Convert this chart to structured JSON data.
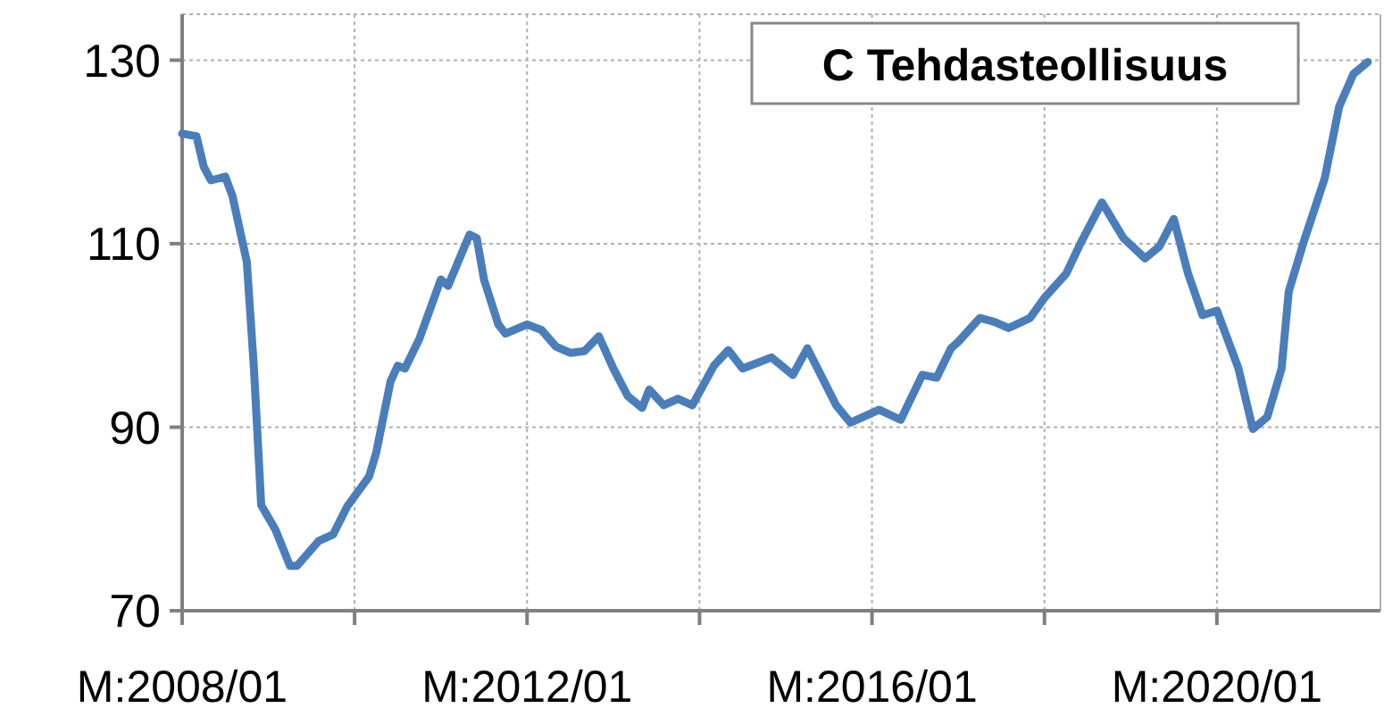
{
  "chart_data": {
    "type": "line",
    "title": "C Tehdasteollisuus",
    "x": [
      "2008-01",
      "2008-03",
      "2008-04",
      "2008-05",
      "2008-07",
      "2008-08",
      "2008-10",
      "2008-11",
      "2008-12",
      "2009-02",
      "2009-04",
      "2009-05",
      "2009-08",
      "2009-10",
      "2009-12",
      "2010-03",
      "2010-04",
      "2010-06",
      "2010-07",
      "2010-08",
      "2010-10",
      "2011-01",
      "2011-02",
      "2011-05",
      "2011-06",
      "2011-07",
      "2011-09",
      "2011-10",
      "2012-01",
      "2012-03",
      "2012-05",
      "2012-07",
      "2012-09",
      "2012-11",
      "2013-01",
      "2013-03",
      "2013-05",
      "2013-06",
      "2013-08",
      "2013-10",
      "2013-12",
      "2014-03",
      "2014-05",
      "2014-07",
      "2014-11",
      "2015-02",
      "2015-04",
      "2015-08",
      "2015-10",
      "2016-02",
      "2016-05",
      "2016-08",
      "2016-10",
      "2016-12",
      "2017-01",
      "2017-04",
      "2017-06",
      "2017-08",
      "2017-11",
      "2018-01",
      "2018-04",
      "2018-06",
      "2018-09",
      "2018-12",
      "2019-03",
      "2019-05",
      "2019-07",
      "2019-09",
      "2019-11",
      "2020-01",
      "2020-04",
      "2020-06",
      "2020-08",
      "2020-10",
      "2020-11",
      "2021-01",
      "2021-04",
      "2021-06",
      "2021-08",
      "2021-10"
    ],
    "series": [
      {
        "color": "#4a7ebb",
        "values": [
          122,
          121.7,
          118.4,
          116.9,
          117.3,
          115.2,
          108,
          96.3,
          81.5,
          78.8,
          74.9,
          74.9,
          77.6,
          78.3,
          81.4,
          84.6,
          87.2,
          95,
          96.7,
          96.4,
          99.6,
          106.1,
          105.4,
          111,
          110.6,
          106.1,
          101.2,
          100.2,
          101.2,
          100.6,
          98.8,
          98.1,
          98.3,
          99.9,
          96.4,
          93.4,
          92.1,
          94.1,
          92.4,
          93.1,
          92.4,
          96.7,
          98.4,
          96.4,
          97.6,
          95.7,
          98.6,
          92.4,
          90.5,
          91.9,
          90.8,
          95.7,
          95.4,
          98.6,
          99.3,
          101.9,
          101.5,
          100.8,
          101.9,
          104.1,
          106.7,
          110,
          114.5,
          110.6,
          108.4,
          109.7,
          112.7,
          106.7,
          102.2,
          102.7,
          96.4,
          89.8,
          91.1,
          96.4,
          104.8,
          110,
          117.1,
          124.9,
          128.5,
          129.8
        ]
      }
    ],
    "xlim": [
      "2008-01",
      "2021-11-24"
    ],
    "xticks": [
      {
        "value": "2008-01",
        "label": "M:2008/01"
      },
      {
        "value": "2010-01",
        "label": null
      },
      {
        "value": "2012-01",
        "label": "M:2012/01"
      },
      {
        "value": "2014-01",
        "label": null
      },
      {
        "value": "2016-01",
        "label": "M:2016/01"
      },
      {
        "value": "2018-01",
        "label": null
      },
      {
        "value": "2020-01",
        "label": "M:2020/01"
      }
    ],
    "ylim": [
      70,
      135
    ],
    "yticks": [
      70,
      90,
      110,
      130
    ],
    "grid": true,
    "marker": "none",
    "line_style": "solid"
  }
}
